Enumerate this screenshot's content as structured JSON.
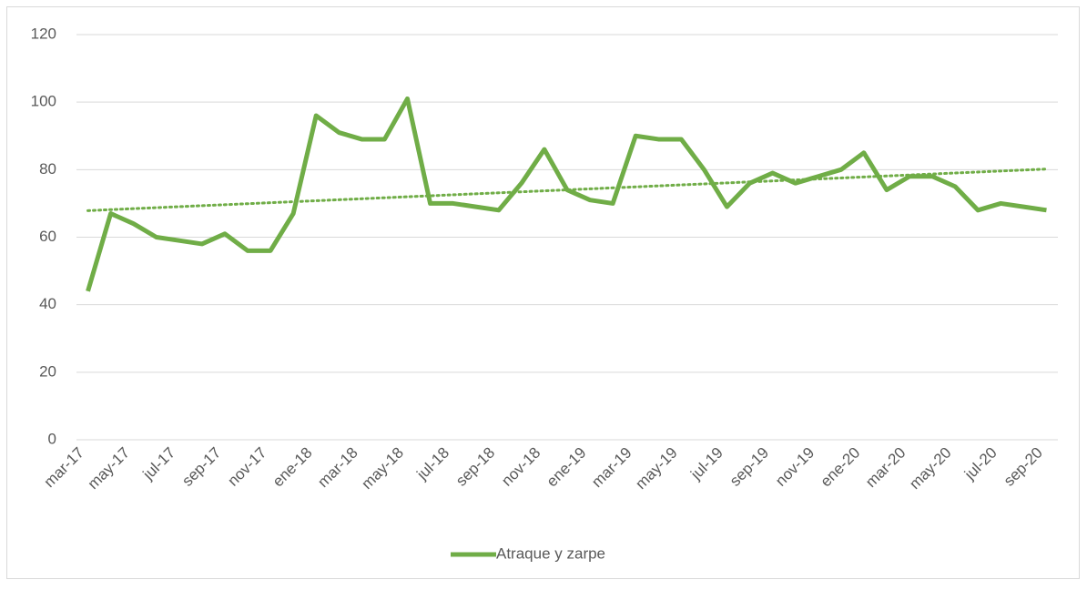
{
  "chart_data": {
    "type": "line",
    "categories": [
      "mar-17",
      null,
      "may-17",
      null,
      "jul-17",
      null,
      "sep-17",
      null,
      "nov-17",
      null,
      "ene-18",
      null,
      "mar-18",
      null,
      "may-18",
      null,
      "jul-18",
      null,
      "sep-18",
      null,
      "nov-18",
      null,
      "ene-19",
      null,
      "mar-19",
      null,
      "may-19",
      null,
      "jul-19",
      null,
      "sep-19",
      null,
      "nov-19",
      null,
      "ene-20",
      null,
      "mar-20",
      null,
      "may-20",
      null,
      "jul-20",
      null,
      "sep-20"
    ],
    "series": [
      {
        "name": "Atraque y zarpe",
        "color": "#70ad47",
        "values": [
          44,
          67,
          64,
          60,
          59,
          58,
          61,
          56,
          56,
          67,
          96,
          91,
          89,
          89,
          101,
          70,
          70,
          69,
          68,
          76,
          86,
          74,
          71,
          70,
          90,
          89,
          89,
          80,
          69,
          76,
          79,
          76,
          78,
          80,
          85,
          74,
          78,
          78,
          75,
          68,
          70,
          69,
          68
        ]
      }
    ],
    "ylim": [
      0,
      120
    ],
    "yticks": [
      0,
      20,
      40,
      60,
      80,
      100,
      120
    ],
    "grid": true,
    "trendline": true,
    "legend": "bottom"
  }
}
